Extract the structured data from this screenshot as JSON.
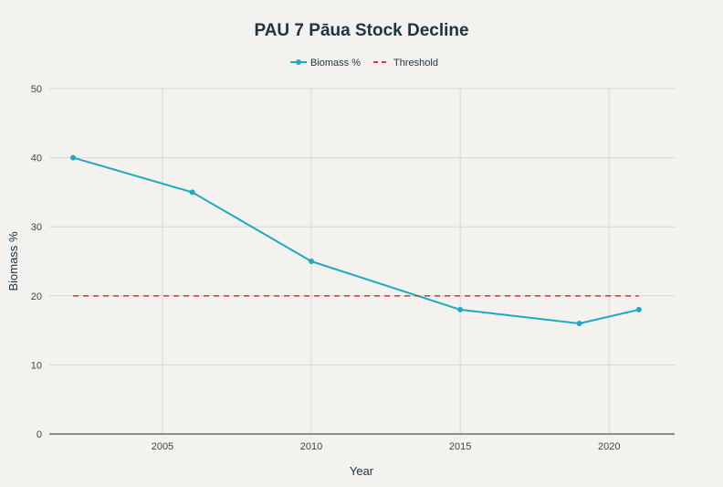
{
  "chart_data": {
    "type": "line",
    "title": "PAU 7 Pāua Stock Decline",
    "xlabel": "Year",
    "ylabel": "Biomass %",
    "xlim": [
      2001.2,
      2022.2
    ],
    "ylim": [
      0,
      50
    ],
    "x_ticks": [
      2005,
      2010,
      2015,
      2020
    ],
    "y_ticks": [
      0,
      10,
      20,
      30,
      40,
      50
    ],
    "grid": true,
    "legend": "top-center",
    "series": [
      {
        "name": "Biomass %",
        "style": "solid-markers",
        "color": "#1fa9c5",
        "x": [
          2002,
          2006,
          2010,
          2015,
          2019,
          2021
        ],
        "values": [
          40,
          35,
          25,
          18,
          16,
          18
        ]
      },
      {
        "name": "Threshold",
        "style": "dashed",
        "color": "#d94040",
        "x": [
          2002,
          2021
        ],
        "values": [
          20,
          20
        ]
      }
    ]
  }
}
